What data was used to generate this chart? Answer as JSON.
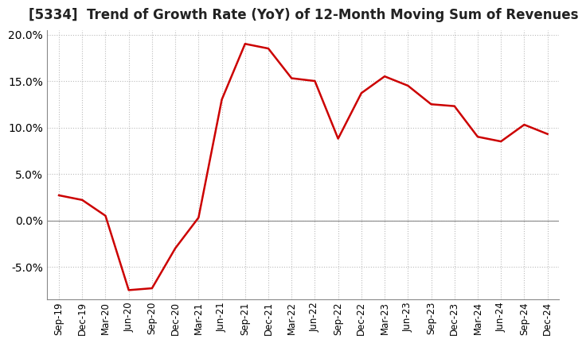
{
  "title": "[5334]  Trend of Growth Rate (YoY) of 12-Month Moving Sum of Revenues",
  "title_fontsize": 12,
  "line_color": "#cc0000",
  "background_color": "#ffffff",
  "grid_color": "#bbbbbb",
  "zero_line_color": "#888888",
  "ylim": [
    -0.085,
    0.205
  ],
  "yticks": [
    -0.05,
    0.0,
    0.05,
    0.1,
    0.15,
    0.2
  ],
  "ytick_labels": [
    "-5.0%",
    "0.0%",
    "5.0%",
    "10.0%",
    "15.0%",
    "20.0%"
  ],
  "x_labels": [
    "Sep-19",
    "Dec-19",
    "Mar-20",
    "Jun-20",
    "Sep-20",
    "Dec-20",
    "Mar-21",
    "Jun-21",
    "Sep-21",
    "Dec-21",
    "Mar-22",
    "Jun-22",
    "Sep-22",
    "Dec-22",
    "Mar-23",
    "Jun-23",
    "Sep-23",
    "Dec-23",
    "Mar-24",
    "Jun-24",
    "Sep-24",
    "Dec-24"
  ],
  "y_values": [
    0.027,
    0.022,
    0.005,
    -0.075,
    -0.073,
    -0.03,
    0.003,
    0.13,
    0.19,
    0.185,
    0.153,
    0.15,
    0.088,
    0.137,
    0.155,
    0.145,
    0.125,
    0.123,
    0.09,
    0.085,
    0.103,
    0.093
  ]
}
